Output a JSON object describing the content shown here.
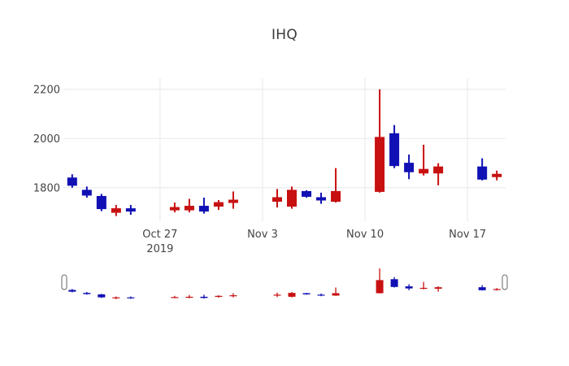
{
  "colors": {
    "increasing": "#c81010",
    "decreasing": "#1010b4",
    "grid": "#e8e8e8",
    "tick_text": "#444444",
    "title_text": "#3a3a3a",
    "slider_handle_border": "#666666",
    "slider_handle_fill": "#ffffff",
    "background": "#ffffff"
  },
  "chart_data": {
    "type": "candlestick",
    "title": "IHQ",
    "xlabel": "",
    "ylabel": "",
    "grid": true,
    "legend": false,
    "has_rangeslider": true,
    "ylim": [
      1664,
      2246
    ],
    "xlim_days": [
      -0.6,
      29.6
    ],
    "slider_ylim": [
      1655,
      2215
    ],
    "y_ticks": [
      {
        "label": "1800",
        "value": 1800
      },
      {
        "label": "2000",
        "value": 2000
      },
      {
        "label": "2200",
        "value": 2200
      }
    ],
    "x_ticks": [
      {
        "label": "Oct 27",
        "sublabel": "2019",
        "day": 6
      },
      {
        "label": "Nov 3",
        "sublabel": "",
        "day": 13
      },
      {
        "label": "Nov 10",
        "sublabel": "",
        "day": 20
      },
      {
        "label": "Nov 17",
        "sublabel": "",
        "day": 27
      }
    ],
    "series": [
      {
        "date": "2019-10-21",
        "day": 0,
        "open": 1840,
        "high": 1855,
        "low": 1800,
        "close": 1810,
        "direction": "down"
      },
      {
        "date": "2019-10-22",
        "day": 1,
        "open": 1790,
        "high": 1805,
        "low": 1760,
        "close": 1770,
        "direction": "down"
      },
      {
        "date": "2019-10-23",
        "day": 2,
        "open": 1765,
        "high": 1775,
        "low": 1705,
        "close": 1715,
        "direction": "down"
      },
      {
        "date": "2019-10-24",
        "day": 3,
        "open": 1700,
        "high": 1730,
        "low": 1685,
        "close": 1715,
        "direction": "up"
      },
      {
        "date": "2019-10-25",
        "day": 4,
        "open": 1715,
        "high": 1730,
        "low": 1690,
        "close": 1705,
        "direction": "down"
      },
      {
        "date": "2019-10-28",
        "day": 7,
        "open": 1710,
        "high": 1740,
        "low": 1700,
        "close": 1720,
        "direction": "up"
      },
      {
        "date": "2019-10-29",
        "day": 8,
        "open": 1710,
        "high": 1755,
        "low": 1700,
        "close": 1725,
        "direction": "up"
      },
      {
        "date": "2019-10-30",
        "day": 9,
        "open": 1725,
        "high": 1760,
        "low": 1695,
        "close": 1705,
        "direction": "down"
      },
      {
        "date": "2019-10-31",
        "day": 10,
        "open": 1725,
        "high": 1750,
        "low": 1710,
        "close": 1740,
        "direction": "up"
      },
      {
        "date": "2019-11-01",
        "day": 11,
        "open": 1740,
        "high": 1785,
        "low": 1715,
        "close": 1750,
        "direction": "up"
      },
      {
        "date": "2019-11-04",
        "day": 14,
        "open": 1745,
        "high": 1795,
        "low": 1720,
        "close": 1760,
        "direction": "up"
      },
      {
        "date": "2019-11-05",
        "day": 15,
        "open": 1725,
        "high": 1805,
        "low": 1715,
        "close": 1790,
        "direction": "up"
      },
      {
        "date": "2019-11-06",
        "day": 16,
        "open": 1785,
        "high": 1790,
        "low": 1760,
        "close": 1765,
        "direction": "down"
      },
      {
        "date": "2019-11-07",
        "day": 17,
        "open": 1760,
        "high": 1780,
        "low": 1735,
        "close": 1750,
        "direction": "down"
      },
      {
        "date": "2019-11-08",
        "day": 18,
        "open": 1745,
        "high": 1880,
        "low": 1740,
        "close": 1785,
        "direction": "up"
      },
      {
        "date": "2019-11-11",
        "day": 21,
        "open": 1785,
        "high": 2200,
        "low": 1780,
        "close": 2005,
        "direction": "up"
      },
      {
        "date": "2019-11-12",
        "day": 22,
        "open": 2020,
        "high": 2055,
        "low": 1880,
        "close": 1890,
        "direction": "down"
      },
      {
        "date": "2019-11-13",
        "day": 23,
        "open": 1900,
        "high": 1935,
        "low": 1835,
        "close": 1865,
        "direction": "down"
      },
      {
        "date": "2019-11-14",
        "day": 24,
        "open": 1860,
        "high": 1975,
        "low": 1850,
        "close": 1875,
        "direction": "up"
      },
      {
        "date": "2019-11-15",
        "day": 25,
        "open": 1860,
        "high": 1900,
        "low": 1810,
        "close": 1885,
        "direction": "up"
      },
      {
        "date": "2019-11-18",
        "day": 28,
        "open": 1885,
        "high": 1920,
        "low": 1830,
        "close": 1835,
        "direction": "down"
      },
      {
        "date": "2019-11-19",
        "day": 29,
        "open": 1845,
        "high": 1870,
        "low": 1830,
        "close": 1855,
        "direction": "up"
      }
    ]
  }
}
